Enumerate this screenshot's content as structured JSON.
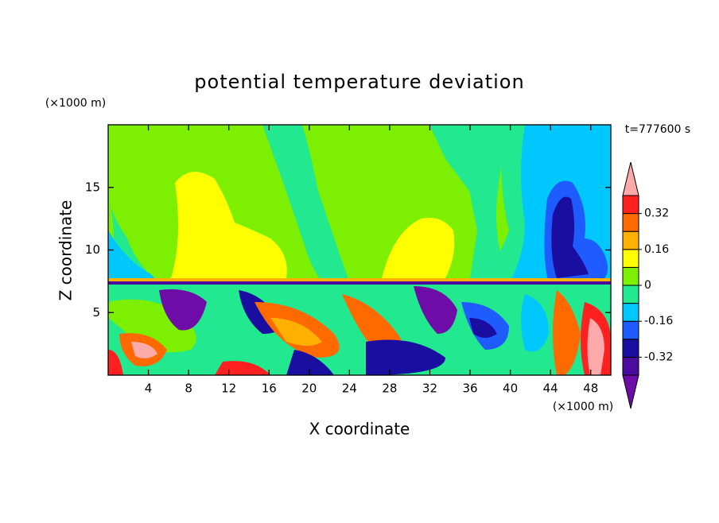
{
  "chart_data": {
    "type": "contour",
    "title": "potential temperature deviation",
    "x_label": "X coordinate",
    "y_label": "Z coordinate",
    "x_unit": "(×1000 m)",
    "y_unit": "(×1000 m)",
    "time_label": "t=777600 s",
    "xlim": [
      0,
      50
    ],
    "xticks": [
      4,
      8,
      12,
      16,
      20,
      24,
      28,
      32,
      36,
      40,
      44,
      48
    ],
    "ylim": [
      0,
      20
    ],
    "yticks": [
      5,
      10,
      15
    ],
    "colorbar": {
      "levels": [
        -0.4,
        -0.32,
        -0.24,
        -0.16,
        -0.08,
        0,
        0.08,
        0.16,
        0.24,
        0.32,
        0.4
      ],
      "colors": [
        "#6e0ca8",
        "#4a0c9c",
        "#1a0ea0",
        "#1e5cff",
        "#00c8ff",
        "#22e890",
        "#7cf000",
        "#ffff00",
        "#ffb000",
        "#ff6a00",
        "#ff2020",
        "#ffaaaa"
      ],
      "ticks": [
        -0.32,
        -0.16,
        0,
        0.16,
        0.32
      ]
    }
  }
}
